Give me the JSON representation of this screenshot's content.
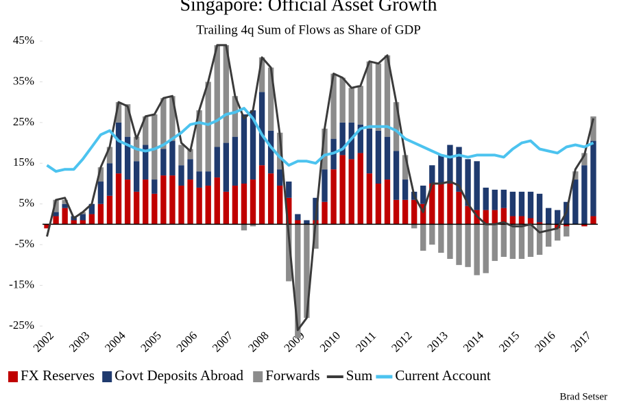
{
  "chart_data": {
    "type": "bar",
    "stacked": true,
    "title": "Singapore: Official Asset Growth",
    "subtitle": "Trailing 4q Sum of Flows as Share of GDP",
    "author": "Brad Setser",
    "categories": [
      "2002",
      null,
      null,
      null,
      "2003",
      null,
      null,
      null,
      "2004",
      null,
      null,
      null,
      "2005",
      null,
      null,
      null,
      "2006",
      null,
      null,
      null,
      "2007",
      null,
      null,
      null,
      "2008",
      null,
      null,
      null,
      "2009",
      null,
      null,
      null,
      "2010",
      null,
      null,
      null,
      "2011",
      null,
      null,
      null,
      "2012",
      null,
      null,
      null,
      "2013",
      null,
      null,
      null,
      "2014",
      null,
      null,
      null,
      "2015",
      null,
      null,
      null,
      "2016",
      null,
      null,
      null,
      "2017",
      null
    ],
    "series": [
      {
        "name": "FX Reserves",
        "kind": "bar",
        "color": "#c00000",
        "values": [
          -1,
          2,
          4,
          1,
          1,
          2.5,
          5,
          7,
          12.5,
          11,
          8,
          11,
          7.5,
          12,
          12,
          9.5,
          11,
          9,
          9.5,
          11.5,
          8,
          9.5,
          10,
          11,
          14.5,
          12.5,
          9.5,
          6.5,
          1,
          0,
          1,
          5.5,
          13.5,
          17,
          16,
          17.5,
          12.5,
          10,
          11,
          6,
          6,
          6,
          5,
          10,
          10,
          10,
          8,
          4.5,
          3.5,
          3.5,
          3.5,
          4,
          2,
          2,
          1.5,
          0.5,
          0,
          -1,
          -0.5,
          0,
          -0.5,
          2
        ]
      },
      {
        "name": "Govt Deposits Abroad",
        "kind": "bar",
        "color": "#1f3a6e",
        "values": [
          0,
          1,
          1,
          1,
          1.5,
          2.5,
          5.5,
          8,
          12.5,
          10.5,
          7.5,
          8.5,
          3.5,
          6.5,
          8.5,
          5,
          5,
          4,
          3.5,
          7.5,
          12,
          12,
          17,
          17,
          18,
          10.5,
          4,
          4,
          1.5,
          1,
          5.5,
          8,
          7.5,
          8,
          9,
          7,
          11,
          13,
          10.5,
          12,
          5,
          2,
          4.5,
          4.5,
          7,
          9.5,
          11,
          11.5,
          12,
          5.5,
          5,
          4.5,
          6,
          6,
          6.5,
          7,
          4,
          3.5,
          5.5,
          11,
          14.5,
          18.5
        ]
      },
      {
        "name": "Forwards",
        "kind": "bar",
        "color": "#8c8c8c",
        "values": [
          0,
          3,
          1,
          0,
          0.5,
          0,
          3.5,
          4,
          5,
          8,
          6,
          7,
          16,
          12.5,
          11,
          5,
          2.5,
          15,
          22,
          25,
          24,
          10,
          -1.5,
          -0.5,
          8.5,
          15.5,
          9,
          -14,
          -28,
          -23,
          -6,
          10,
          16,
          11,
          8.5,
          9.5,
          16.5,
          16.5,
          20,
          12,
          6,
          -1,
          -6.5,
          -5,
          -7,
          -8.5,
          -10,
          -10.5,
          -12.5,
          -12,
          -9,
          -8,
          -8.5,
          -8.5,
          -8,
          -7.5,
          -5.5,
          -3,
          -2.5,
          2,
          3,
          6
        ]
      },
      {
        "name": "Sum",
        "kind": "line",
        "color": "#3a3a3a",
        "values": [
          -3,
          6,
          6.5,
          1.5,
          3,
          5,
          14,
          19,
          30,
          29,
          21,
          26.5,
          27,
          31,
          31.5,
          20,
          18,
          28,
          35,
          44,
          44,
          31.5,
          26,
          28,
          41,
          38.5,
          22,
          -3,
          -26,
          -23,
          1,
          23.5,
          37,
          36,
          33.5,
          34,
          40,
          39.5,
          41.5,
          30,
          17,
          7,
          3,
          10,
          10,
          10.5,
          9.5,
          5,
          2,
          0,
          0,
          0.5,
          -0.5,
          -0.5,
          0,
          -2,
          -1.5,
          -1,
          3,
          13.5,
          17,
          26
        ]
      },
      {
        "name": "Current Account",
        "kind": "line",
        "color": "#4cc3ef",
        "values": [
          14.5,
          13,
          13.5,
          13.5,
          16,
          19,
          22,
          23,
          20.5,
          19.5,
          18.5,
          18,
          18.5,
          19.5,
          21,
          22.5,
          24.5,
          25,
          24.5,
          25.5,
          27,
          27.5,
          28.5,
          26,
          22,
          19,
          16.5,
          14.5,
          15.5,
          15.5,
          15,
          17,
          17.5,
          18.5,
          21,
          23.5,
          24,
          24,
          24,
          23,
          21,
          20,
          19,
          18,
          17,
          16.5,
          17,
          16.5,
          17,
          17,
          17,
          16.5,
          18.5,
          20,
          20.5,
          18.5,
          18,
          17.5,
          19,
          19.5,
          19,
          20
        ]
      }
    ],
    "ylim": [
      -25,
      45
    ],
    "yticks": [
      {
        "value": -25,
        "label": "-25%"
      },
      {
        "value": -15,
        "label": "-15%"
      },
      {
        "value": -5,
        "label": "-5%"
      },
      {
        "value": 5,
        "label": "5%"
      },
      {
        "value": 15,
        "label": "15%"
      },
      {
        "value": 25,
        "label": "25%"
      },
      {
        "value": 35,
        "label": "35%"
      },
      {
        "value": 45,
        "label": "45%"
      }
    ],
    "grid": false,
    "legend": "bottom"
  }
}
